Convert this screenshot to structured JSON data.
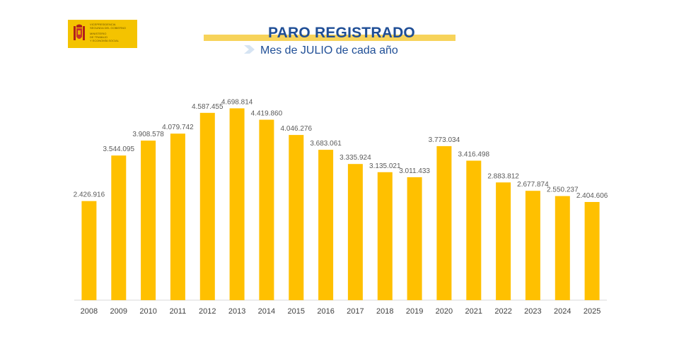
{
  "logo": {
    "lines": [
      "Vicepresidencia",
      "Segunda del Gobierno",
      "Ministerio",
      "de Trabajo",
      "y Economía Social"
    ],
    "color": "#f4c300"
  },
  "header": {
    "title": "PARO REGISTRADO",
    "subtitle": "Mes de JULIO de cada año",
    "title_color": "#1f4e96"
  },
  "chart_data": {
    "type": "bar",
    "title": "PARO REGISTRADO",
    "subtitle": "Mes de JULIO de cada año",
    "xlabel": "",
    "ylabel": "",
    "ylim": [
      0,
      5000000
    ],
    "grid": false,
    "bar_color": "#ffc000",
    "categories": [
      "2008",
      "2009",
      "2010",
      "2011",
      "2012",
      "2013",
      "2014",
      "2015",
      "2016",
      "2017",
      "2018",
      "2019",
      "2020",
      "2021",
      "2022",
      "2023",
      "2024",
      "2025"
    ],
    "values": [
      2426916,
      3544095,
      3908578,
      4079742,
      4587455,
      4698814,
      4419860,
      4046276,
      3683061,
      3335924,
      3135021,
      3011433,
      3773034,
      3416498,
      2883812,
      2677874,
      2550237,
      2404606
    ],
    "value_labels": [
      "2.426.916",
      "3.544.095",
      "3.908.578",
      "4.079.742",
      "4.587.455",
      "4.698.814",
      "4.419.860",
      "4.046.276",
      "3.683.061",
      "3.335.924",
      "3.135.021",
      "3.011.433",
      "3.773.034",
      "3.416.498",
      "2.883.812",
      "2.677.874",
      "2.550.237",
      "2.404.606"
    ]
  }
}
